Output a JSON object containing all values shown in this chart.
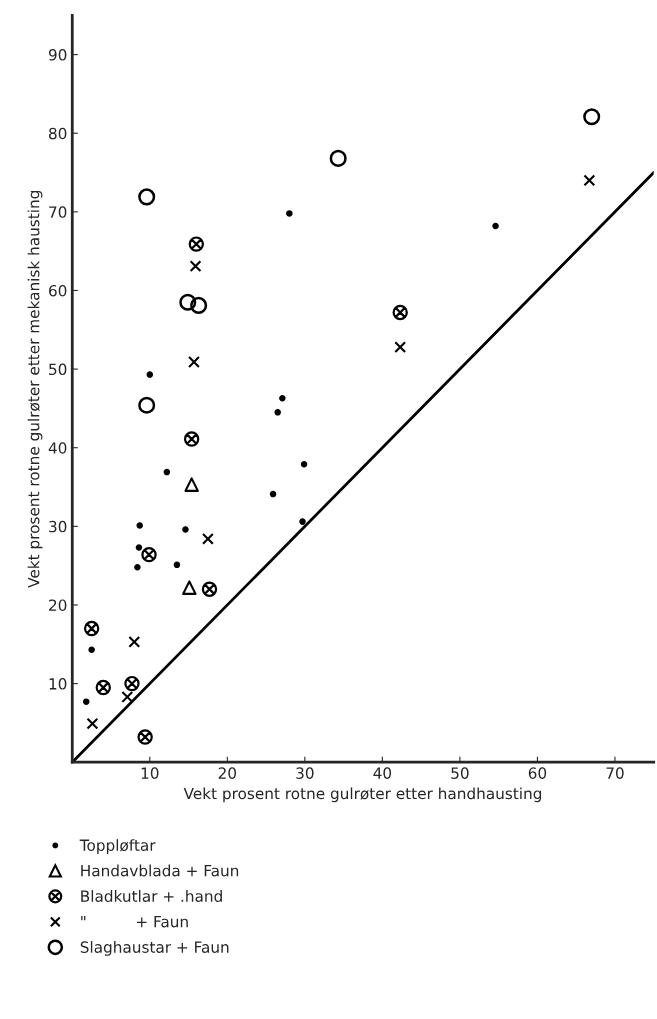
{
  "chart_data": {
    "type": "scatter",
    "xlabel": "Vekt prosent rotne gulrøter etter handhausting",
    "ylabel": "Vekt prosent rotne gulrøter etter mekanisk hausting",
    "xlim": [
      0,
      75
    ],
    "ylim": [
      0,
      95
    ],
    "xticks": [
      10,
      20,
      30,
      40,
      50,
      60,
      70
    ],
    "yticks": [
      10,
      20,
      30,
      40,
      50,
      60,
      70,
      80,
      90
    ],
    "grid": false,
    "legend": "bottom",
    "series": [
      {
        "name": "Toppløftar",
        "marker": "circle",
        "color": "#000000",
        "x": [
          28.0,
          10.0,
          27.1,
          26.5,
          12.2,
          29.9,
          25.9,
          29.7,
          8.7,
          14.6,
          8.6,
          8.4,
          13.5,
          2.5,
          1.8,
          54.6
        ],
        "values": [
          69.8,
          49.3,
          46.3,
          44.5,
          36.9,
          37.9,
          34.1,
          30.6,
          30.1,
          29.6,
          27.3,
          24.8,
          25.1,
          14.3,
          7.7,
          68.2
        ]
      },
      {
        "name": "Handavblada + Faun",
        "marker": "triangle",
        "color": "#000000",
        "x": [
          15.4,
          15.1
        ],
        "values": [
          35.3,
          22.2
        ]
      },
      {
        "name": "Bladkutlar + .hand",
        "marker": "cross",
        "color": "#000000",
        "x": [
          16.0,
          15.4,
          9.9,
          17.7,
          2.5,
          4.0,
          7.7,
          9.4,
          42.3
        ],
        "values": [
          65.9,
          41.1,
          26.4,
          22.0,
          17.0,
          9.5,
          10.0,
          3.2,
          57.2
        ]
      },
      {
        "name": "\"          + Faun",
        "marker": "cross",
        "color": "#000000",
        "x": [
          15.9,
          15.7,
          17.5,
          8.0,
          7.1,
          2.6,
          66.7,
          42.3
        ],
        "values": [
          63.1,
          50.9,
          28.4,
          15.3,
          8.3,
          4.9,
          74.0,
          52.8
        ]
      },
      {
        "name": "Slaghaustar + Faun",
        "marker": "circle",
        "color": "#000000",
        "x": [
          9.6,
          14.9,
          16.3,
          9.6,
          34.3,
          67.0
        ],
        "values": [
          71.9,
          58.5,
          58.1,
          45.4,
          76.8,
          82.1
        ]
      },
      {
        "type": "line",
        "color": "#000000",
        "x": [
          0,
          75
        ],
        "values": [
          0,
          75
        ]
      }
    ]
  }
}
